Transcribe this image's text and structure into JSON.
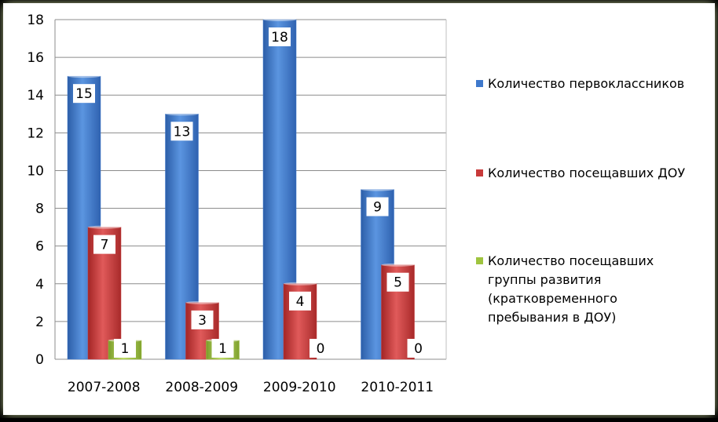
{
  "chart_data": {
    "type": "bar",
    "categories": [
      "2007-2008",
      "2008-2009",
      "2009-2010",
      "2010-2011"
    ],
    "series": [
      {
        "name": "Количество первоклассников",
        "values": [
          15,
          13,
          18,
          9
        ],
        "color": "#3f79cc"
      },
      {
        "name": "Количество  посещавших ДОУ",
        "values": [
          7,
          3,
          4,
          5
        ],
        "color": "#c83a3a"
      },
      {
        "name": "Количество  посещавших группы развития (кратковременного пребывания в ДОУ)",
        "legend_lines": [
          "Количество  посещавших",
          "группы развития",
          "(кратковременного",
          "пребывания в ДОУ)"
        ],
        "values": [
          1,
          1,
          0,
          0
        ],
        "color": "#9fc43f"
      }
    ],
    "y_ticks": [
      "0",
      "2",
      "4",
      "6",
      "8",
      "10",
      "12",
      "14",
      "16",
      "18"
    ],
    "ylim": [
      0,
      18
    ],
    "grid": true,
    "legend_position": "right",
    "data_labels": true,
    "background_color": "#ffffff",
    "frame_glow_color": "#dff3a6"
  }
}
